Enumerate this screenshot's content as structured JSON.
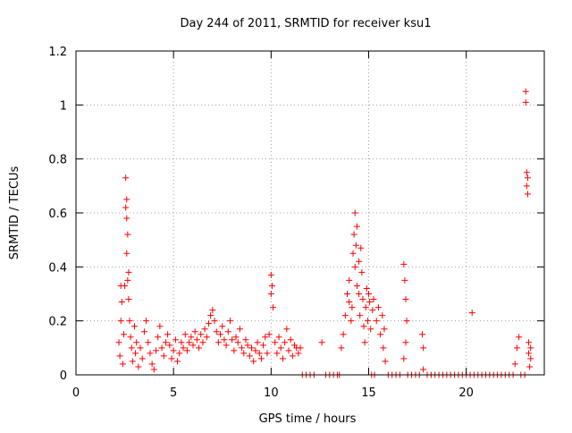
{
  "chart_data": {
    "type": "scatter",
    "title": "Day 244 of 2011, SRMTID for receiver ksu1",
    "xlabel": "GPS time / hours",
    "ylabel": "SRMTID / TECUs",
    "xlim": [
      0,
      24
    ],
    "ylim": [
      0,
      1.2
    ],
    "xticks": [
      0,
      5,
      10,
      15,
      20
    ],
    "yticks": [
      0,
      0.2,
      0.4,
      0.6,
      0.8,
      1,
      1.2
    ],
    "xtick_labels": [
      "0",
      "5",
      "10",
      "15",
      "20"
    ],
    "ytick_labels": [
      "0",
      "0.2",
      "0.4",
      "0.6",
      "0.8",
      "1",
      "1.2"
    ],
    "grid": true,
    "marker": "+",
    "series": [
      {
        "name": "SRMTID",
        "color": "#ff0000",
        "points": [
          [
            2.2,
            0.12
          ],
          [
            2.25,
            0.07
          ],
          [
            2.3,
            0.2
          ],
          [
            2.3,
            0.33
          ],
          [
            2.35,
            0.27
          ],
          [
            2.4,
            0.04
          ],
          [
            2.45,
            0.15
          ],
          [
            2.5,
            0.33
          ],
          [
            2.55,
            0.62
          ],
          [
            2.55,
            0.73
          ],
          [
            2.6,
            0.65
          ],
          [
            2.6,
            0.58
          ],
          [
            2.65,
            0.52
          ],
          [
            2.6,
            0.45
          ],
          [
            2.65,
            0.35
          ],
          [
            2.7,
            0.38
          ],
          [
            2.7,
            0.28
          ],
          [
            2.75,
            0.2
          ],
          [
            2.8,
            0.14
          ],
          [
            2.85,
            0.1
          ],
          [
            2.9,
            0.05
          ],
          [
            3.0,
            0.18
          ],
          [
            3.05,
            0.08
          ],
          [
            3.1,
            0.12
          ],
          [
            3.2,
            0.03
          ],
          [
            3.3,
            0.1
          ],
          [
            3.4,
            0.06
          ],
          [
            3.5,
            0.16
          ],
          [
            3.6,
            0.2
          ],
          [
            3.7,
            0.12
          ],
          [
            3.8,
            0.08
          ],
          [
            3.9,
            0.04
          ],
          [
            4.0,
            0.02
          ],
          [
            4.1,
            0.09
          ],
          [
            4.2,
            0.14
          ],
          [
            4.3,
            0.18
          ],
          [
            4.4,
            0.1
          ],
          [
            4.5,
            0.07
          ],
          [
            4.6,
            0.12
          ],
          [
            4.7,
            0.15
          ],
          [
            4.8,
            0.11
          ],
          [
            4.9,
            0.06
          ],
          [
            5.0,
            0.09
          ],
          [
            5.1,
            0.13
          ],
          [
            5.2,
            0.05
          ],
          [
            5.3,
            0.08
          ],
          [
            5.4,
            0.12
          ],
          [
            5.5,
            0.1
          ],
          [
            5.6,
            0.15
          ],
          [
            5.7,
            0.09
          ],
          [
            5.8,
            0.12
          ],
          [
            5.9,
            0.14
          ],
          [
            6.0,
            0.11
          ],
          [
            6.1,
            0.16
          ],
          [
            6.2,
            0.13
          ],
          [
            6.3,
            0.1
          ],
          [
            6.4,
            0.15
          ],
          [
            6.5,
            0.12
          ],
          [
            6.6,
            0.17
          ],
          [
            6.7,
            0.14
          ],
          [
            6.8,
            0.19
          ],
          [
            6.9,
            0.22
          ],
          [
            7.0,
            0.24
          ],
          [
            7.1,
            0.2
          ],
          [
            7.2,
            0.16
          ],
          [
            7.3,
            0.12
          ],
          [
            7.4,
            0.15
          ],
          [
            7.5,
            0.18
          ],
          [
            7.6,
            0.13
          ],
          [
            7.7,
            0.11
          ],
          [
            7.8,
            0.16
          ],
          [
            7.9,
            0.2
          ],
          [
            8.0,
            0.13
          ],
          [
            8.1,
            0.09
          ],
          [
            8.2,
            0.14
          ],
          [
            8.3,
            0.12
          ],
          [
            8.4,
            0.17
          ],
          [
            8.5,
            0.1
          ],
          [
            8.6,
            0.08
          ],
          [
            8.7,
            0.13
          ],
          [
            8.8,
            0.11
          ],
          [
            8.9,
            0.07
          ],
          [
            9.0,
            0.1
          ],
          [
            9.1,
            0.05
          ],
          [
            9.2,
            0.09
          ],
          [
            9.3,
            0.12
          ],
          [
            9.4,
            0.08
          ],
          [
            9.5,
            0.06
          ],
          [
            9.6,
            0.11
          ],
          [
            9.7,
            0.14
          ],
          [
            9.8,
            0.08
          ],
          [
            9.9,
            0.15
          ],
          [
            10.0,
            0.3
          ],
          [
            10.0,
            0.37
          ],
          [
            10.05,
            0.33
          ],
          [
            10.1,
            0.25
          ],
          [
            10.2,
            0.12
          ],
          [
            10.3,
            0.08
          ],
          [
            10.4,
            0.14
          ],
          [
            10.5,
            0.1
          ],
          [
            10.6,
            0.06
          ],
          [
            10.7,
            0.12
          ],
          [
            10.8,
            0.17
          ],
          [
            10.9,
            0.09
          ],
          [
            11.0,
            0.13
          ],
          [
            11.1,
            0.07
          ],
          [
            11.2,
            0.11
          ],
          [
            11.3,
            0.1
          ],
          [
            11.4,
            0.08
          ],
          [
            11.5,
            0.1
          ],
          [
            11.6,
            0.0
          ],
          [
            11.8,
            0.0
          ],
          [
            12.0,
            0.0
          ],
          [
            12.2,
            0.0
          ],
          [
            12.6,
            0.12
          ],
          [
            12.8,
            0.0
          ],
          [
            13.0,
            0.0
          ],
          [
            13.2,
            0.0
          ],
          [
            13.4,
            0.0
          ],
          [
            13.5,
            0.0
          ],
          [
            13.6,
            0.1
          ],
          [
            13.7,
            0.15
          ],
          [
            13.8,
            0.22
          ],
          [
            13.9,
            0.3
          ],
          [
            14.0,
            0.35
          ],
          [
            14.0,
            0.27
          ],
          [
            14.1,
            0.2
          ],
          [
            14.15,
            0.25
          ],
          [
            14.2,
            0.45
          ],
          [
            14.25,
            0.52
          ],
          [
            14.3,
            0.6
          ],
          [
            14.3,
            0.4
          ],
          [
            14.35,
            0.48
          ],
          [
            14.4,
            0.55
          ],
          [
            14.4,
            0.33
          ],
          [
            14.5,
            0.42
          ],
          [
            14.5,
            0.3
          ],
          [
            14.55,
            0.22
          ],
          [
            14.6,
            0.47
          ],
          [
            14.65,
            0.38
          ],
          [
            14.7,
            0.28
          ],
          [
            14.75,
            0.18
          ],
          [
            14.8,
            0.12
          ],
          [
            14.85,
            0.25
          ],
          [
            14.9,
            0.32
          ],
          [
            14.95,
            0.2
          ],
          [
            15.0,
            0.3
          ],
          [
            15.05,
            0.27
          ],
          [
            15.1,
            0.17
          ],
          [
            15.15,
            0.0
          ],
          [
            15.2,
            0.24
          ],
          [
            15.25,
            0.28
          ],
          [
            15.3,
            0.0
          ],
          [
            15.4,
            0.2
          ],
          [
            15.5,
            0.25
          ],
          [
            15.6,
            0.15
          ],
          [
            15.7,
            0.22
          ],
          [
            15.75,
            0.1
          ],
          [
            15.8,
            0.17
          ],
          [
            15.85,
            0.05
          ],
          [
            16.0,
            0.0
          ],
          [
            16.2,
            0.0
          ],
          [
            16.4,
            0.0
          ],
          [
            16.6,
            0.0
          ],
          [
            16.8,
            0.41
          ],
          [
            16.85,
            0.35
          ],
          [
            16.9,
            0.28
          ],
          [
            16.95,
            0.2
          ],
          [
            16.9,
            0.12
          ],
          [
            16.8,
            0.06
          ],
          [
            17.0,
            0.0
          ],
          [
            17.2,
            0.0
          ],
          [
            17.4,
            0.0
          ],
          [
            17.6,
            0.0
          ],
          [
            17.75,
            0.15
          ],
          [
            17.8,
            0.1
          ],
          [
            17.8,
            0.02
          ],
          [
            18.0,
            0.0
          ],
          [
            18.2,
            0.0
          ],
          [
            18.4,
            0.0
          ],
          [
            18.6,
            0.0
          ],
          [
            18.8,
            0.0
          ],
          [
            19.0,
            0.0
          ],
          [
            19.2,
            0.0
          ],
          [
            19.4,
            0.0
          ],
          [
            19.6,
            0.0
          ],
          [
            19.8,
            0.0
          ],
          [
            20.0,
            0.0
          ],
          [
            20.2,
            0.0
          ],
          [
            20.3,
            0.23
          ],
          [
            20.4,
            0.0
          ],
          [
            20.6,
            0.0
          ],
          [
            20.8,
            0.0
          ],
          [
            21.0,
            0.0
          ],
          [
            21.2,
            0.0
          ],
          [
            21.4,
            0.0
          ],
          [
            21.6,
            0.0
          ],
          [
            21.8,
            0.0
          ],
          [
            22.0,
            0.0
          ],
          [
            22.2,
            0.0
          ],
          [
            22.4,
            0.0
          ],
          [
            22.5,
            0.04
          ],
          [
            22.6,
            0.1
          ],
          [
            22.7,
            0.14
          ],
          [
            22.8,
            0.0
          ],
          [
            23.0,
            0.0
          ],
          [
            23.05,
            1.05
          ],
          [
            23.05,
            1.01
          ],
          [
            23.1,
            0.75
          ],
          [
            23.15,
            0.73
          ],
          [
            23.1,
            0.7
          ],
          [
            23.15,
            0.67
          ],
          [
            23.2,
            0.12
          ],
          [
            23.2,
            0.08
          ],
          [
            23.25,
            0.03
          ],
          [
            23.3,
            0.1
          ],
          [
            23.3,
            0.06
          ]
        ]
      }
    ]
  }
}
